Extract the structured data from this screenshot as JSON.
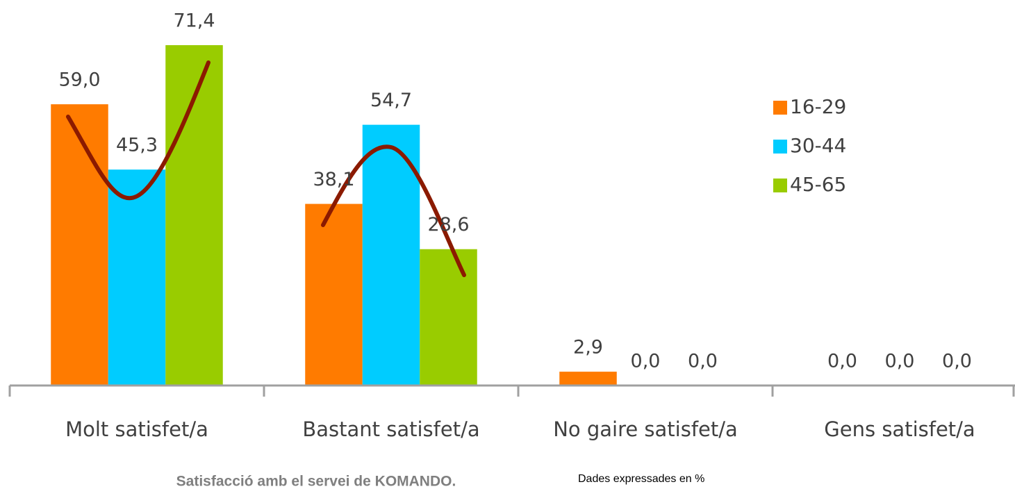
{
  "chart_data": {
    "type": "bar",
    "title": "Satisfacció amb el servei de KOMANDO.",
    "note": "Dades expressades en %",
    "categories": [
      "Molt satisfet/a",
      "Bastant satisfet/a",
      "No gaire satisfet/a",
      "Gens satisfet/a"
    ],
    "series": [
      {
        "name": "16-29",
        "color": "#ff7b00",
        "values": [
          59.0,
          38.1,
          2.9,
          0.0
        ],
        "value_labels": [
          "59,0",
          "38,1",
          "2,9",
          "0,0"
        ]
      },
      {
        "name": "30-44",
        "color": "#00ccff",
        "values": [
          45.3,
          54.7,
          0.0,
          0.0
        ],
        "value_labels": [
          "45,3",
          "54,7",
          "0,0",
          "0,0"
        ]
      },
      {
        "name": "45-65",
        "color": "#99cc00",
        "values": [
          71.4,
          28.6,
          0.0,
          0.0
        ],
        "value_labels": [
          "71,4",
          "28,6",
          "0,0",
          "0,0"
        ]
      }
    ],
    "ylim": [
      0,
      80
    ],
    "legend": "right"
  }
}
